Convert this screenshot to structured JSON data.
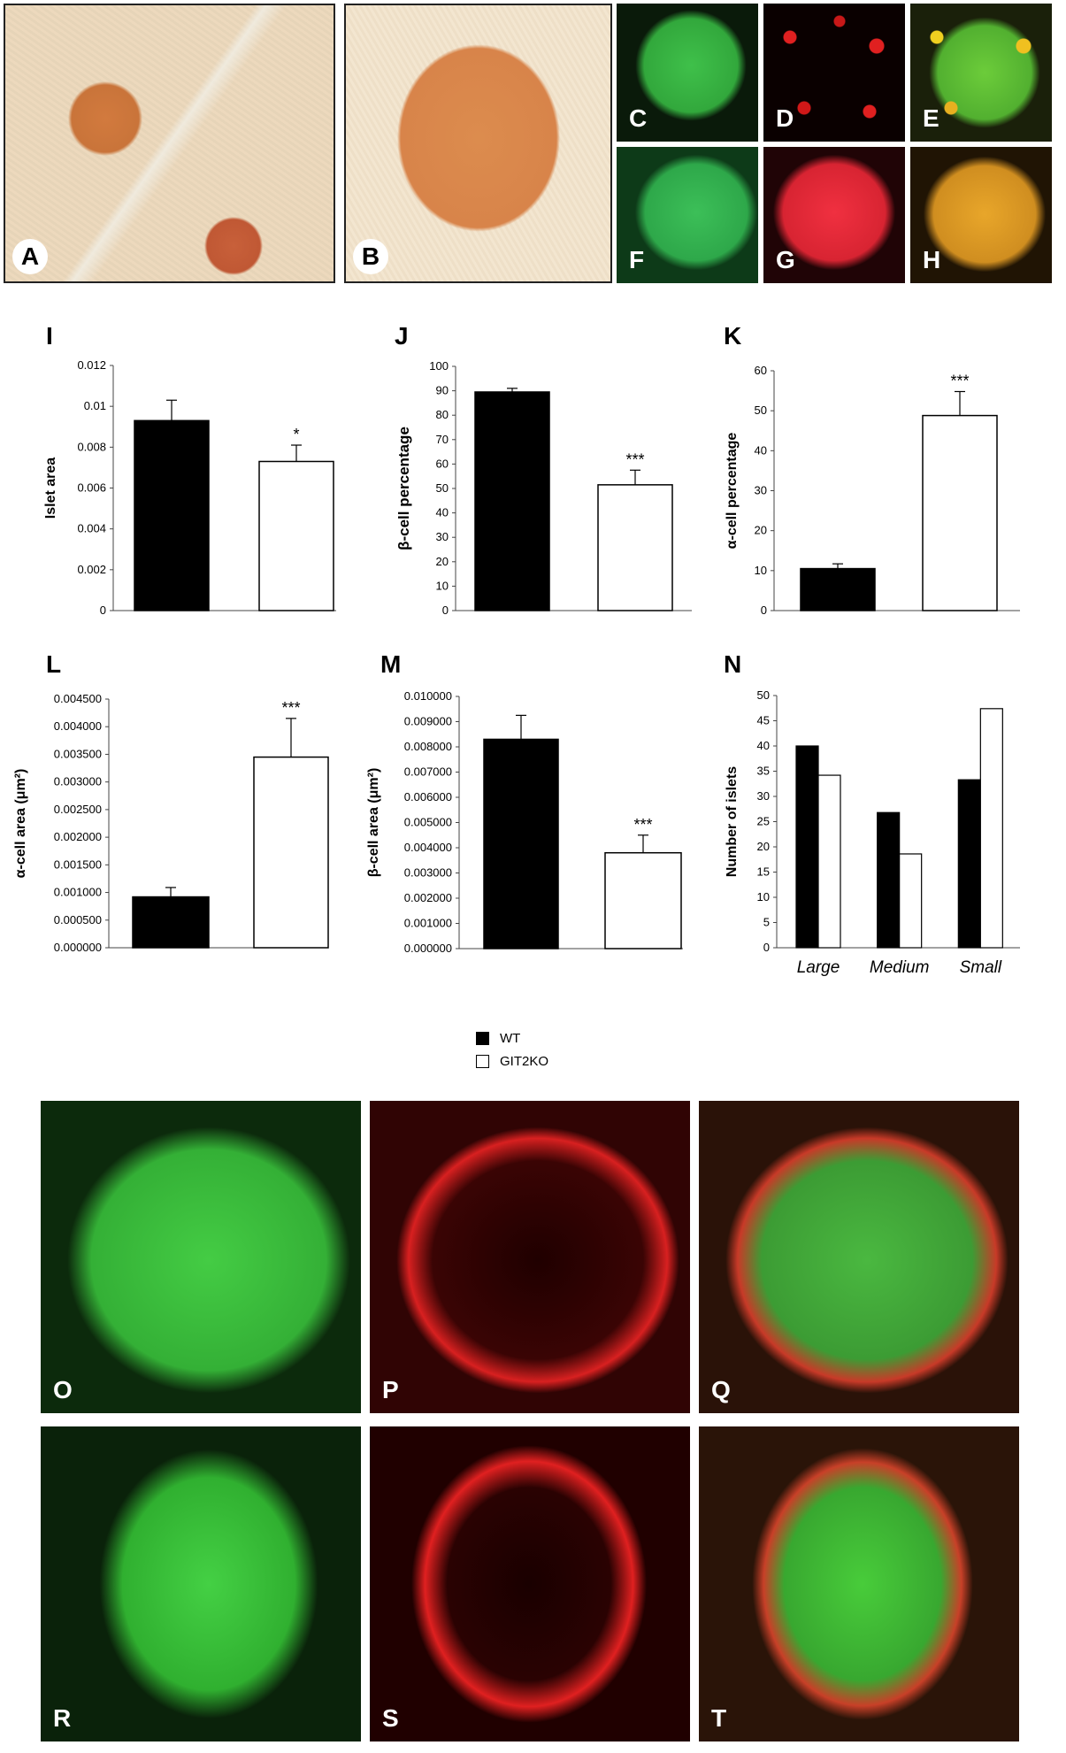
{
  "panels": {
    "micrographs_top": [
      "A",
      "B",
      "C",
      "D",
      "E",
      "F",
      "G",
      "H"
    ],
    "micrographs_bottom": [
      "O",
      "P",
      "Q",
      "R",
      "S",
      "T"
    ]
  },
  "legend": [
    {
      "label": "WT",
      "color": "#000000"
    },
    {
      "label": "GIT2KO",
      "color": "#ffffff"
    }
  ],
  "chart_data": [
    {
      "panel": "I",
      "type": "bar",
      "categories": [
        "WT",
        "GIT2KO"
      ],
      "values": [
        0.0093,
        0.0073
      ],
      "errors": [
        0.001,
        0.0008
      ],
      "significance": [
        "",
        "*"
      ],
      "ylabel": "Islet area",
      "ylim": [
        0,
        0.012
      ],
      "ticks": [
        "0",
        "0.002",
        "0.004",
        "0.006",
        "0.008",
        "0.01",
        "0.012"
      ]
    },
    {
      "panel": "J",
      "type": "bar",
      "categories": [
        "WT",
        "GIT2KO"
      ],
      "values": [
        89.5,
        51.5
      ],
      "errors": [
        1.5,
        6
      ],
      "significance": [
        "",
        "***"
      ],
      "ylabel": "β-cell percentage",
      "ylim": [
        0,
        100
      ],
      "ticks": [
        "0",
        "10",
        "20",
        "30",
        "40",
        "50",
        "60",
        "70",
        "80",
        "90",
        "100"
      ]
    },
    {
      "panel": "K",
      "type": "bar",
      "categories": [
        "WT",
        "GIT2KO"
      ],
      "values": [
        10.5,
        48.8
      ],
      "errors": [
        1.2,
        6
      ],
      "significance": [
        "",
        "***"
      ],
      "ylabel": "α-cell percentage",
      "ylim": [
        0,
        60
      ],
      "ticks": [
        "0",
        "10",
        "20",
        "30",
        "40",
        "50",
        "60"
      ]
    },
    {
      "panel": "L",
      "type": "bar",
      "categories": [
        "WT",
        "GIT2KO"
      ],
      "values": [
        0.00092,
        0.00345
      ],
      "errors": [
        0.00017,
        0.0007
      ],
      "significance": [
        "",
        "***"
      ],
      "ylabel": "α-cell area (μm²)",
      "ylim": [
        0,
        0.0045
      ],
      "ticks": [
        "0.000000",
        "0.000500",
        "0.001000",
        "0.001500",
        "0.002000",
        "0.002500",
        "0.003000",
        "0.003500",
        "0.004000",
        "0.004500"
      ]
    },
    {
      "panel": "M",
      "type": "bar",
      "categories": [
        "WT",
        "GIT2KO"
      ],
      "values": [
        0.0083,
        0.0038
      ],
      "errors": [
        0.00095,
        0.0007
      ],
      "significance": [
        "",
        "***"
      ],
      "ylabel": "β-cell area (μm²)",
      "ylim": [
        0,
        0.01
      ],
      "ticks": [
        "0.000000",
        "0.001000",
        "0.002000",
        "0.003000",
        "0.004000",
        "0.005000",
        "0.006000",
        "0.007000",
        "0.008000",
        "0.009000",
        "0.010000"
      ]
    },
    {
      "panel": "N",
      "type": "bar",
      "categories": [
        "Large",
        "Medium",
        "Small"
      ],
      "series": [
        {
          "name": "WT",
          "values": [
            40,
            26.8,
            33.3
          ]
        },
        {
          "name": "GIT2KO",
          "values": [
            34.2,
            18.6,
            47.4
          ]
        }
      ],
      "ylabel": "Number of islets",
      "ylim": [
        0,
        50
      ],
      "ticks": [
        "0",
        "5",
        "10",
        "15",
        "20",
        "25",
        "30",
        "35",
        "40",
        "45",
        "50"
      ]
    }
  ]
}
